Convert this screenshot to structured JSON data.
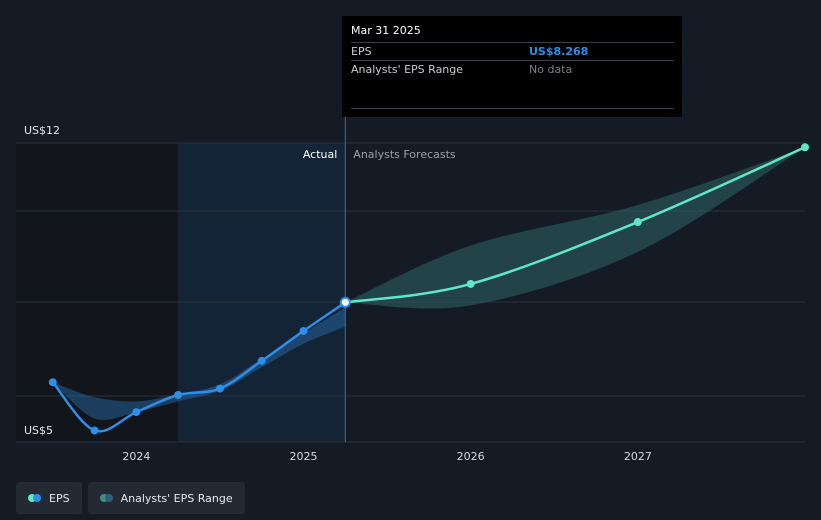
{
  "chart_data": {
    "type": "line",
    "y_min_label": "US$5",
    "y_max_label": "US$12",
    "ylim": [
      5,
      12
    ],
    "x_ticks": [
      "2024",
      "2025",
      "2026",
      "2027"
    ],
    "x_tick_values": [
      2024,
      2025,
      2026,
      2027
    ],
    "xlim": [
      2023.28,
      2028.0
    ],
    "divider_x": 2025.25,
    "actual_label": "Actual",
    "forecast_label": "Analysts Forecasts",
    "series": [
      {
        "name": "EPS",
        "color": "#2e8ee8",
        "points": [
          {
            "x": 2023.5,
            "y": 6.4
          },
          {
            "x": 2023.75,
            "y": 5.27
          },
          {
            "x": 2024.0,
            "y": 5.7
          },
          {
            "x": 2024.25,
            "y": 6.1
          },
          {
            "x": 2024.5,
            "y": 6.25
          },
          {
            "x": 2024.75,
            "y": 6.9
          },
          {
            "x": 2025.0,
            "y": 7.6
          },
          {
            "x": 2025.25,
            "y": 8.268
          }
        ]
      },
      {
        "name": "EPS Forecast",
        "color": "#5ee8c8",
        "points": [
          {
            "x": 2025.25,
            "y": 8.268
          },
          {
            "x": 2026.0,
            "y": 8.7
          },
          {
            "x": 2027.0,
            "y": 10.15
          },
          {
            "x": 2028.0,
            "y": 11.9
          }
        ]
      }
    ],
    "actual_range": {
      "x": [
        2023.5,
        2023.75,
        2024.0,
        2024.25,
        2024.5,
        2024.75,
        2025.0,
        2025.25
      ],
      "low": [
        6.4,
        5.55,
        5.7,
        5.95,
        6.2,
        6.75,
        7.3,
        7.7
      ],
      "high": [
        6.4,
        6.05,
        5.95,
        6.12,
        6.35,
        6.95,
        7.55,
        8.15
      ]
    },
    "forecast_range": {
      "x": [
        2025.25,
        2026.0,
        2027.0,
        2028.0
      ],
      "low": [
        8.268,
        8.2,
        9.45,
        11.9
      ],
      "high": [
        8.268,
        9.6,
        10.55,
        11.9
      ]
    }
  },
  "tooltip": {
    "date": "Mar 31 2025",
    "eps_label": "EPS",
    "eps_value": "US$8.268",
    "range_label": "Analysts' EPS Range",
    "range_value": "No data"
  },
  "legend": {
    "eps_label": "EPS",
    "range_label": "Analysts' EPS Range"
  },
  "colors": {
    "eps": "#2e8ee8",
    "forecast": "#5ee8c8",
    "range": "#2f6c6a",
    "grid": "#2b313b",
    "highlight": "#15324e"
  }
}
